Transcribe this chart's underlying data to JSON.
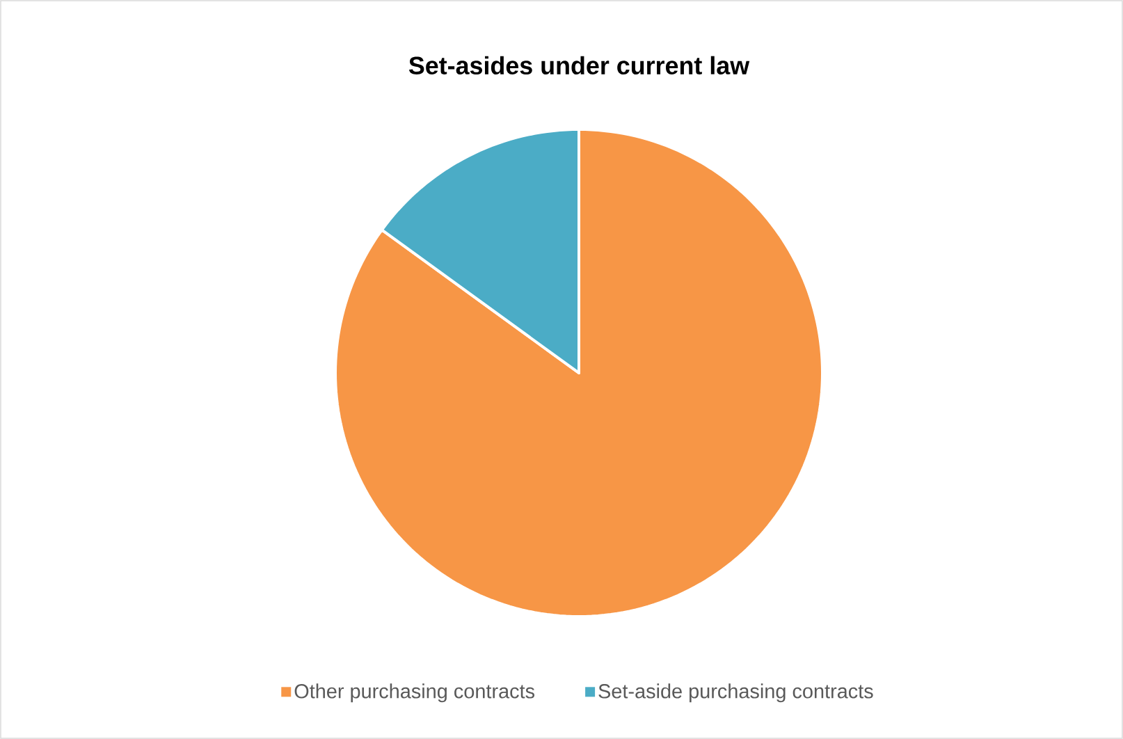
{
  "chart_data": {
    "type": "pie",
    "title": "Set-asides under current law",
    "categories": [
      "Other purchasing contracts",
      "Set-aside purchasing contracts"
    ],
    "values": [
      85,
      15
    ],
    "colors": [
      "#f79646",
      "#4bacc6"
    ],
    "legend": "bottom"
  }
}
